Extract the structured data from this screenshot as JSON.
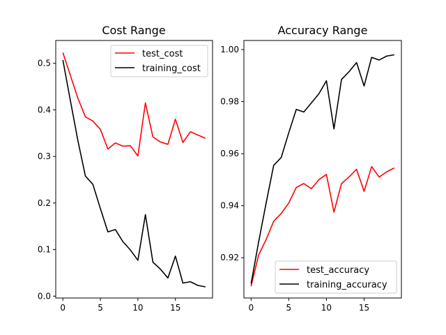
{
  "chart_data": [
    {
      "type": "line",
      "title": "Cost Range",
      "xlabel": "",
      "ylabel": "",
      "xlim": [
        -0.95,
        19.95
      ],
      "ylim": [
        -0.004,
        0.549
      ],
      "xticks": [
        0,
        5,
        10,
        15
      ],
      "xtick_labels": [
        "0",
        "5",
        "10",
        "15"
      ],
      "yticks": [
        0.0,
        0.1,
        0.2,
        0.3,
        0.4,
        0.5
      ],
      "ytick_labels": [
        "0.0",
        "0.1",
        "0.2",
        "0.3",
        "0.4",
        "0.5"
      ],
      "grid": false,
      "legend": "top-right",
      "x": [
        0,
        1,
        2,
        3,
        4,
        5,
        6,
        7,
        8,
        9,
        10,
        11,
        12,
        13,
        14,
        15,
        16,
        17,
        18,
        19
      ],
      "series": [
        {
          "name": "test_cost",
          "color": "#ff0000",
          "values": [
            0.523,
            0.474,
            0.425,
            0.385,
            0.376,
            0.358,
            0.316,
            0.329,
            0.322,
            0.323,
            0.301,
            0.415,
            0.342,
            0.331,
            0.326,
            0.38,
            0.33,
            0.353,
            0.346,
            0.339
          ]
        },
        {
          "name": "training_cost",
          "color": "#000000",
          "values": [
            0.507,
            0.42,
            0.334,
            0.258,
            0.24,
            0.188,
            0.138,
            0.143,
            0.117,
            0.099,
            0.077,
            0.175,
            0.073,
            0.058,
            0.039,
            0.086,
            0.028,
            0.031,
            0.023,
            0.02
          ]
        }
      ]
    },
    {
      "type": "line",
      "title": "Accuracy Range",
      "xlabel": "",
      "ylabel": "",
      "xlim": [
        -0.95,
        19.95
      ],
      "ylim": [
        0.9045,
        1.0035
      ],
      "xticks": [
        0,
        5,
        10,
        15
      ],
      "xtick_labels": [
        "0",
        "5",
        "10",
        "15"
      ],
      "yticks": [
        0.92,
        0.94,
        0.96,
        0.98,
        1.0
      ],
      "ytick_labels": [
        "0.92",
        "0.94",
        "0.96",
        "0.98",
        "1.00"
      ],
      "grid": false,
      "legend": "bottom-right",
      "x": [
        0,
        1,
        2,
        3,
        4,
        5,
        6,
        7,
        8,
        9,
        10,
        11,
        12,
        13,
        14,
        15,
        16,
        17,
        18,
        19
      ],
      "series": [
        {
          "name": "test_accuracy",
          "color": "#ff0000",
          "values": [
            0.909,
            0.921,
            0.927,
            0.934,
            0.937,
            0.941,
            0.947,
            0.9485,
            0.9465,
            0.95,
            0.952,
            0.9375,
            0.9485,
            0.951,
            0.954,
            0.9455,
            0.955,
            0.951,
            0.953,
            0.9545
          ]
        },
        {
          "name": "training_accuracy",
          "color": "#000000",
          "values": [
            0.91,
            0.926,
            0.941,
            0.9555,
            0.9585,
            0.968,
            0.977,
            0.976,
            0.9795,
            0.983,
            0.988,
            0.9695,
            0.9885,
            0.9915,
            0.995,
            0.986,
            0.997,
            0.996,
            0.9975,
            0.998
          ]
        }
      ]
    }
  ]
}
